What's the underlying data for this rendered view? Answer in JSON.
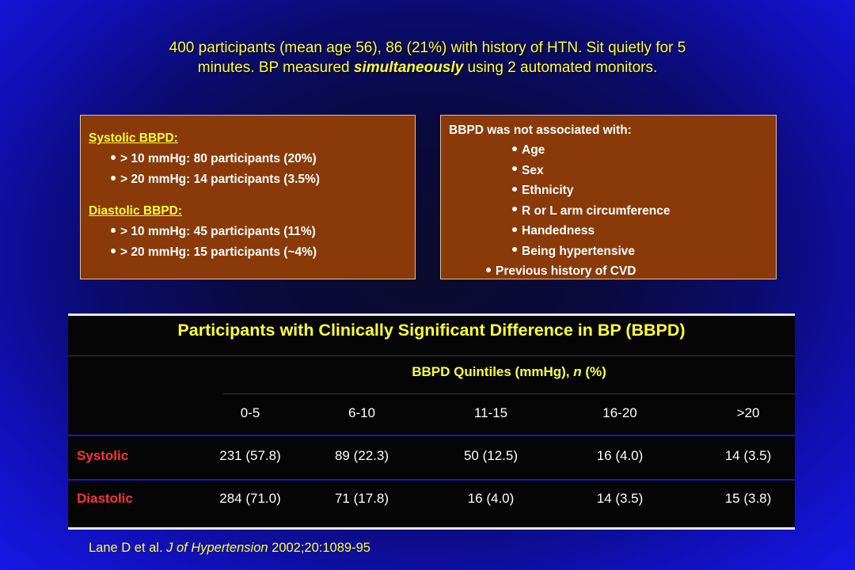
{
  "intro": {
    "line1": "400 participants (mean age 56), 86 (21%) with history of HTN. Sit quietly for 5",
    "line2_pre": "minutes. BP measured ",
    "line2_em": "simultaneously",
    "line2_post": " using 2 automated monitors."
  },
  "left_box": {
    "systolic_heading": "Systolic BBPD:",
    "systolic_items": [
      "> 10 mmHg: 80 participants (20%)",
      "> 20 mmHg: 14 participants (3.5%)"
    ],
    "diastolic_heading": "Diastolic BBPD:",
    "diastolic_items": [
      "> 10 mmHg: 45 participants (11%)",
      "> 20 mmHg: 15 participants (~4%)"
    ]
  },
  "right_box": {
    "heading": "BBPD was not associated with:",
    "items": [
      "Age",
      "Sex",
      "Ethnicity",
      "R or L arm circumference",
      "Handedness",
      "Being hypertensive",
      "Previous history of CVD"
    ]
  },
  "table": {
    "title": "Participants with Clinically Significant Difference in BP (BBPD)",
    "subhead_pre": "BBPD Quintiles (mmHg), ",
    "subhead_n": "n",
    "subhead_post": " (%)",
    "columns": [
      "0-5",
      "6-10",
      "11-15",
      "16-20",
      ">20"
    ],
    "rows": [
      {
        "label": "Systolic",
        "values": [
          "231 (57.8)",
          "89 (22.3)",
          "50 (12.5)",
          "16 (4.0)",
          "14 (3.5)"
        ]
      },
      {
        "label": "Diastolic",
        "values": [
          "284 (71.0)",
          "71 (17.8)",
          "16 (4.0)",
          "14 (3.5)",
          "15 (3.8)"
        ]
      }
    ]
  },
  "citation": {
    "authors": "Lane D et al. ",
    "journal": "J of Hypertension",
    "details": " 2002;20:1089-95"
  }
}
